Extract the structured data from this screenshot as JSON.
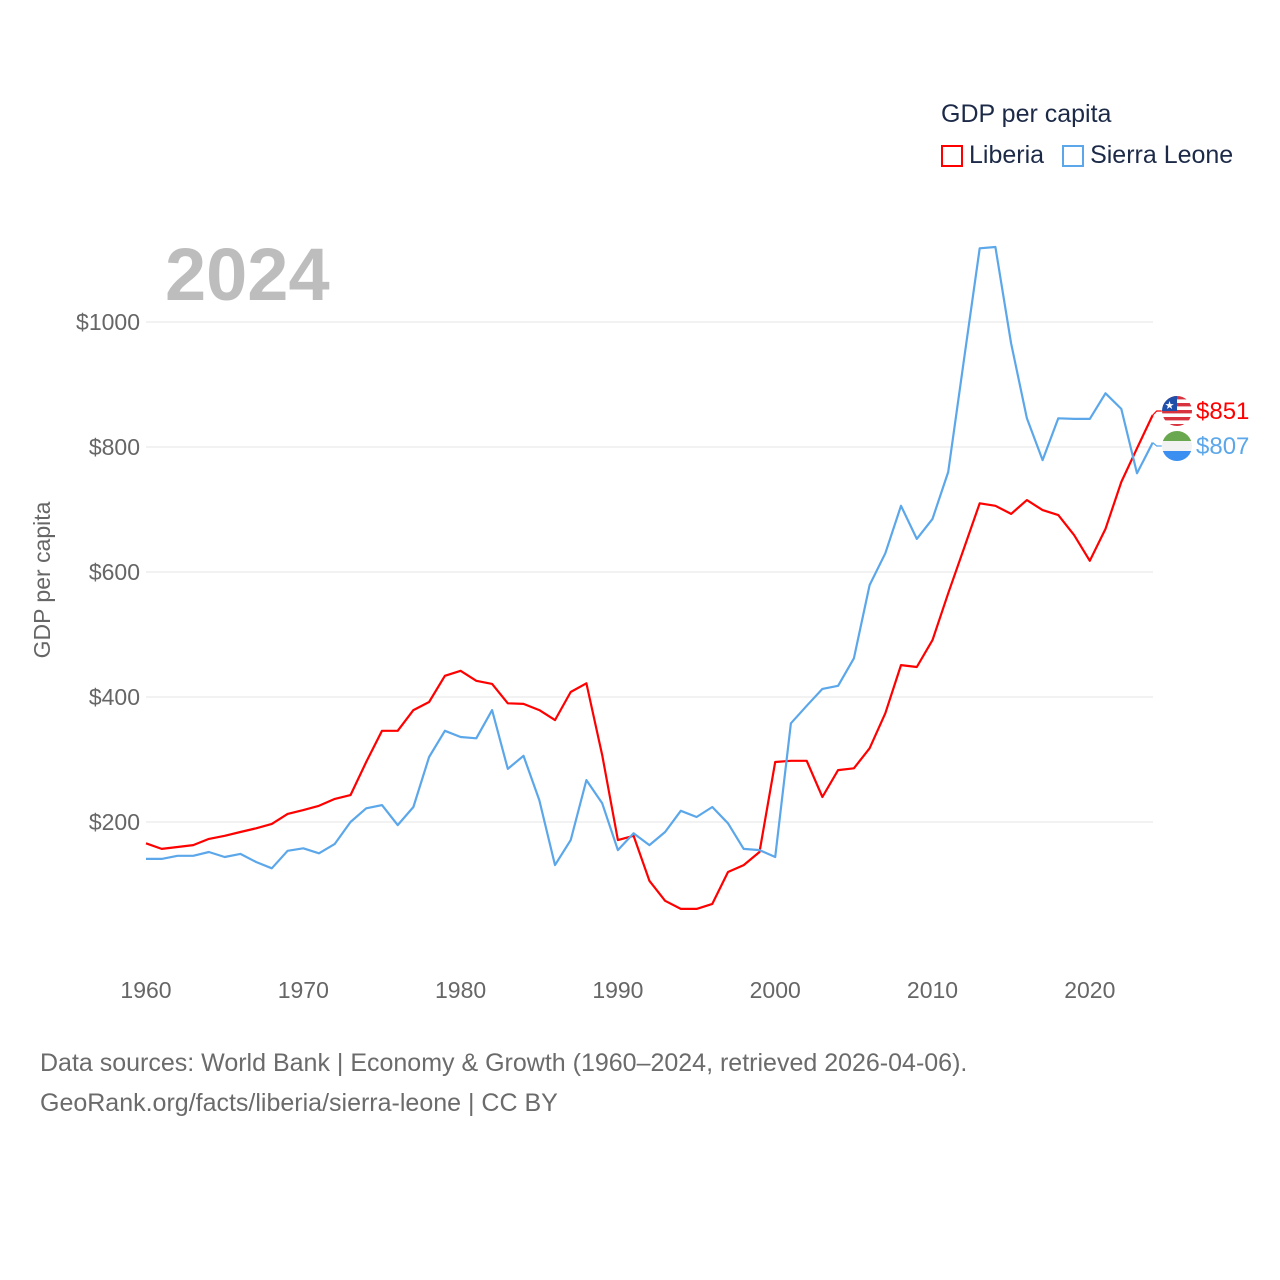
{
  "chart_data": {
    "type": "line",
    "title": "GDP per capita",
    "year_label": "2024",
    "xlabel": "",
    "ylabel": "GDP per capita",
    "xlim": [
      1960,
      2024
    ],
    "ylim": [
      0,
      1150
    ],
    "x_ticks": [
      1960,
      1970,
      1980,
      1990,
      2000,
      2010,
      2020
    ],
    "x_tick_labels": [
      "1960",
      "1970",
      "1980",
      "1990",
      "2000",
      "2010",
      "2020"
    ],
    "y_ticks": [
      200,
      400,
      600,
      800,
      1000
    ],
    "y_tick_labels": [
      "$200",
      "$400",
      "$600",
      "$800",
      "$1000"
    ],
    "grid": true,
    "legend_position": "top-right",
    "x": [
      1960,
      1961,
      1962,
      1963,
      1964,
      1965,
      1966,
      1967,
      1968,
      1969,
      1970,
      1971,
      1972,
      1973,
      1974,
      1975,
      1976,
      1977,
      1978,
      1979,
      1980,
      1981,
      1982,
      1983,
      1984,
      1985,
      1986,
      1987,
      1988,
      1989,
      1990,
      1991,
      1992,
      1993,
      1994,
      1995,
      1996,
      1997,
      1998,
      1999,
      2000,
      2001,
      2002,
      2003,
      2004,
      2005,
      2006,
      2007,
      2008,
      2009,
      2010,
      2011,
      2012,
      2013,
      2014,
      2015,
      2016,
      2017,
      2018,
      2019,
      2020,
      2021,
      2022,
      2023,
      2024
    ],
    "series": [
      {
        "name": "Liberia",
        "color": "#ff0000",
        "end_label": "$851",
        "values": [
          166,
          157,
          160,
          163,
          173,
          178,
          184,
          190,
          197,
          213,
          219,
          226,
          237,
          243,
          296,
          346,
          346,
          379,
          392,
          434,
          442,
          426,
          421,
          390,
          389,
          379,
          363,
          408,
          422,
          307,
          171,
          178,
          106,
          74,
          61,
          61,
          69,
          120,
          131,
          152,
          296,
          298,
          298,
          240,
          283,
          286,
          318,
          374,
          451,
          448,
          491,
          566,
          638,
          710,
          706,
          693,
          715,
          699,
          691,
          659,
          618,
          669,
          744,
          798,
          851
        ]
      },
      {
        "name": "Sierra Leone",
        "color": "#5ba7ea",
        "end_label": "$807",
        "values": [
          141,
          141,
          146,
          146,
          152,
          144,
          149,
          136,
          126,
          154,
          158,
          150,
          165,
          200,
          222,
          227,
          195,
          224,
          304,
          346,
          336,
          334,
          379,
          285,
          306,
          235,
          131,
          171,
          267,
          230,
          155,
          182,
          163,
          184,
          218,
          208,
          224,
          198,
          157,
          155,
          144,
          358,
          386,
          413,
          418,
          462,
          579,
          630,
          706,
          653,
          685,
          760,
          940,
          1118,
          1120,
          966,
          846,
          779,
          846,
          845,
          845,
          886,
          861,
          758,
          807
        ]
      }
    ]
  },
  "footer": {
    "line1": "Data sources: World Bank | Economy & Growth (1960–2024, retrieved 2026-04-06).",
    "line2": "GeoRank.org/facts/liberia/sierra-leone | CC BY"
  }
}
